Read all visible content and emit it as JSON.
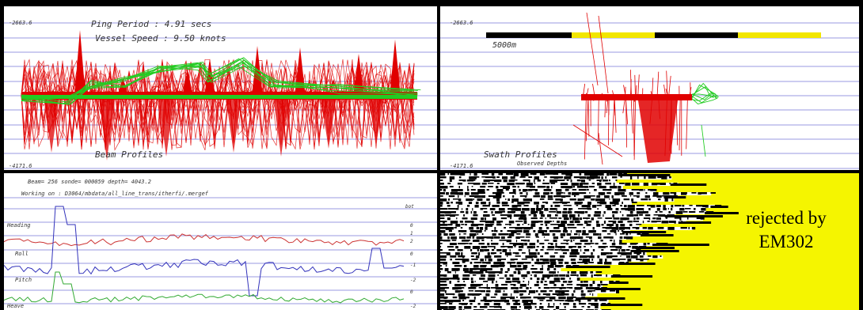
{
  "colors": {
    "gridline": "#9a9ae0",
    "beam_red": "#e00000",
    "beam_green": "#22cc22",
    "ruler_black": "#000000",
    "ruler_yellow": "#f2e600",
    "reject_yellow": "#f5f500",
    "roll_red": "#cc3333",
    "pitch_blue": "#3333bb",
    "heave_green": "#33aa33"
  },
  "top_left": {
    "ping_period": "Ping Period : 4.91 secs",
    "vessel_speed": "Vessel Speed : 9.50 knots",
    "depth_top": "-2663.6",
    "depth_bottom": "-4171.6",
    "title": "Beam Profiles"
  },
  "top_right": {
    "depth_top": "-2663.6",
    "depth_bottom": "-4171.6",
    "scale": "5000m",
    "title": "Swath Profiles",
    "subtitle": "Observed Depths"
  },
  "bottom_left": {
    "header": "Beam= 256  sonde= 000059  depth= 4043.2",
    "working": "Working on : D3064/mbdata/all_line_trans/itherfi/.mergef",
    "sub_label": "bot",
    "rows": [
      {
        "name": "Heading",
        "val": "0"
      },
      {
        "name": "Roll",
        "val": "0"
      },
      {
        "name": "Pitch",
        "val": "-2"
      },
      {
        "name": "Heave",
        "val": "-2"
      }
    ],
    "side_vals": [
      "1",
      "2",
      "-1",
      "0"
    ]
  },
  "bottom_right": {
    "reject_line1": "rejected by",
    "reject_line2": "EM302"
  }
}
